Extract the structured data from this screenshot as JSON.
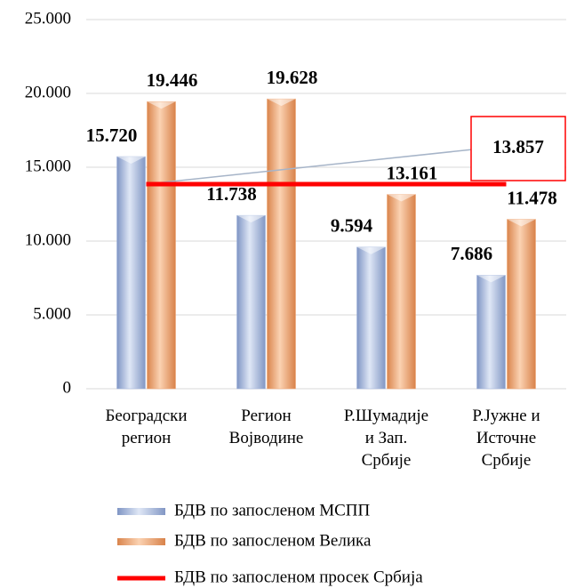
{
  "chart_data": {
    "type": "bar",
    "categories": [
      "Београдски\nрегион",
      "Регион\nВојводине",
      "Р.Шумадије\nи Зап.\nСрбије",
      "Р.Јужне и\nИсточне\nСрбије"
    ],
    "series": [
      {
        "name": "БДВ по запосленом МСПП",
        "color": "#9fb3dc",
        "values": [
          15720,
          11738,
          9594,
          7686
        ],
        "value_labels": [
          "15.720",
          "11.738",
          "9.594",
          "7.686"
        ]
      },
      {
        "name": "БДВ по запосленом Велика",
        "color": "#f0a36e",
        "values": [
          19446,
          19628,
          13161,
          11478
        ],
        "value_labels": [
          "19.446",
          "19.628",
          "13.161",
          "11.478"
        ]
      }
    ],
    "average": {
      "name": "БДВ по запосленом просек Србија",
      "color": "#ff0000",
      "value": 13857,
      "value_label": "13.857"
    },
    "ylim": [
      0,
      25000
    ],
    "yticks": [
      {
        "value": 0,
        "label": "0"
      },
      {
        "value": 5000,
        "label": "5.000"
      },
      {
        "value": 10000,
        "label": "10.000"
      },
      {
        "value": 15000,
        "label": "15.000"
      },
      {
        "value": 20000,
        "label": "20.000"
      },
      {
        "value": 25000,
        "label": "25.000"
      }
    ],
    "grid": true
  }
}
